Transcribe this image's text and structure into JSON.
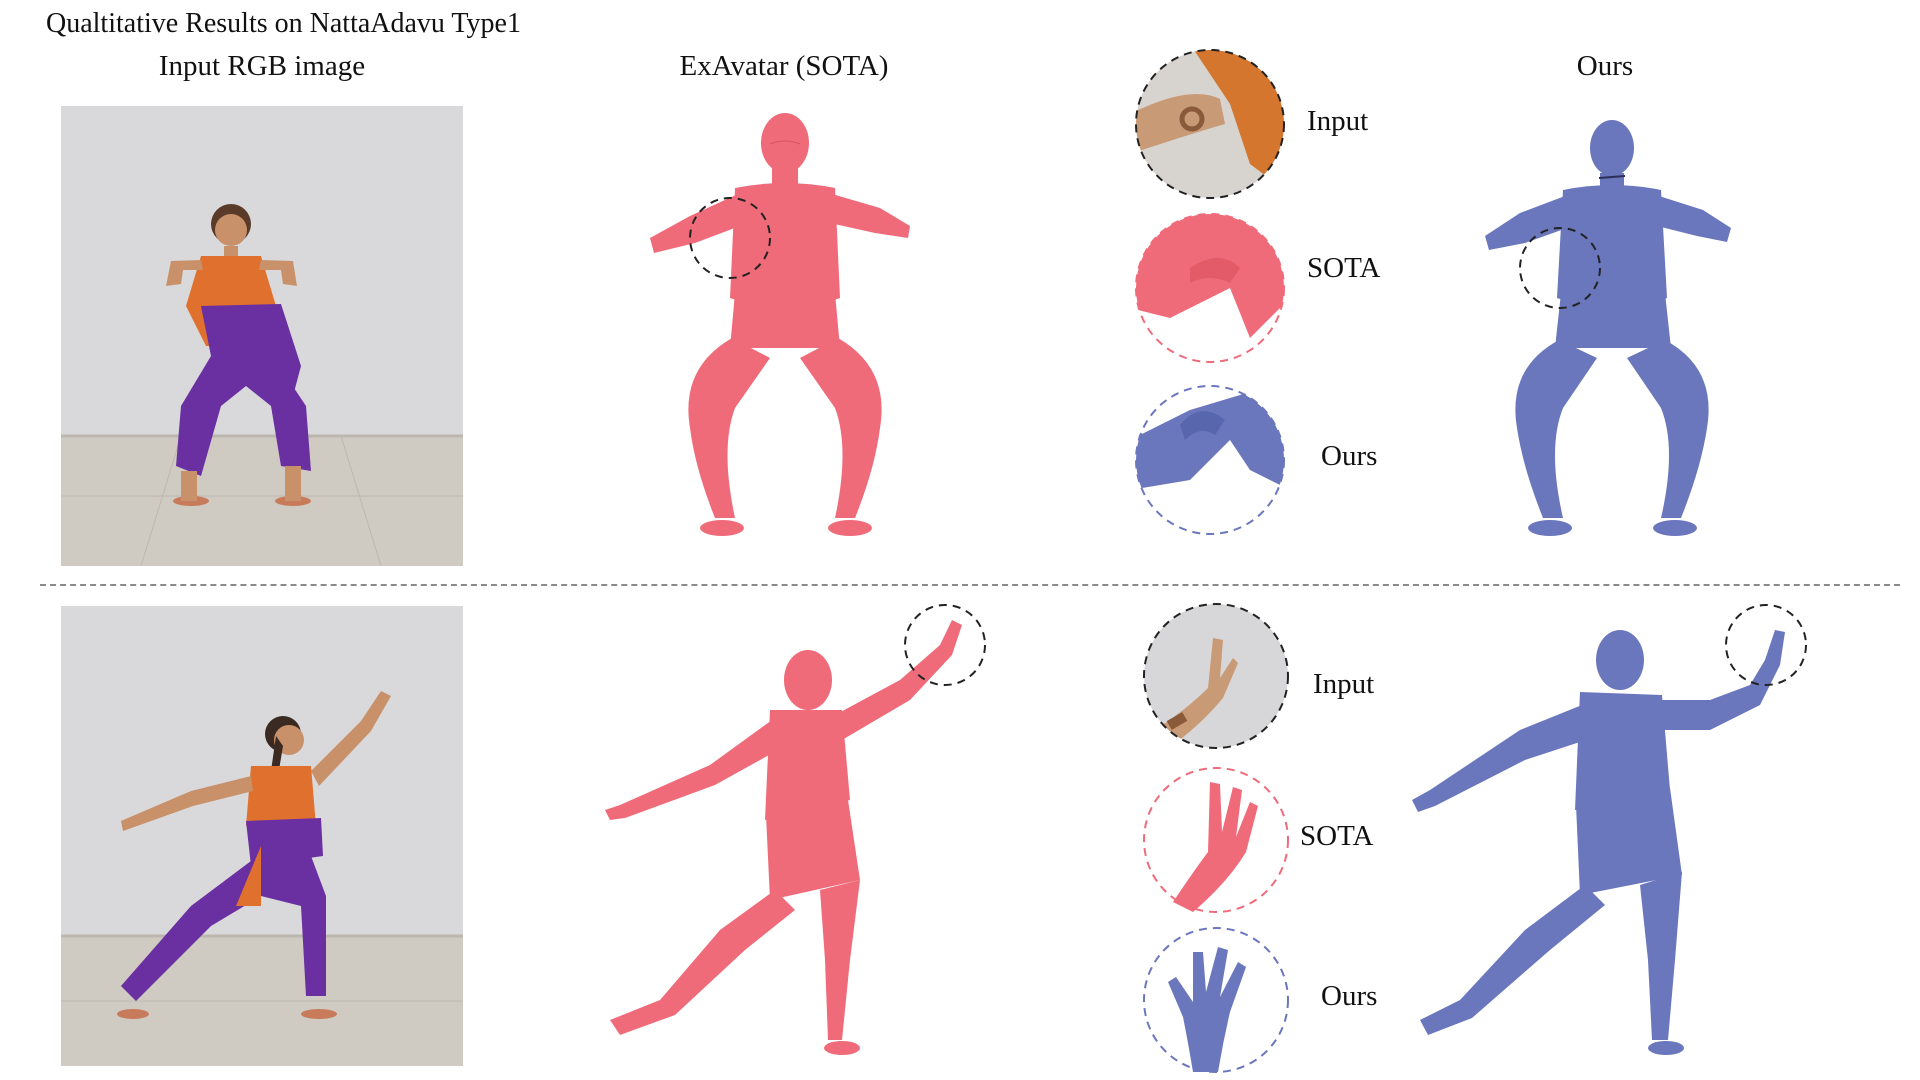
{
  "figure": {
    "title": "Qualtitative Results on NattaAdavu Type1",
    "columns": {
      "input": "Input RGB image",
      "sota": "ExAvatar (SOTA)",
      "ours": "Ours"
    },
    "zoom_labels": {
      "input": "Input",
      "sota": "SOTA",
      "ours": "Ours"
    }
  },
  "colors": {
    "sota_mesh": "#f06b7a",
    "ours_mesh": "#6b77bd",
    "costume_orange": "#e0702e",
    "costume_purple": "#6a2fa0",
    "wall": "#d9d9dc",
    "floor": "#cfcac2"
  }
}
